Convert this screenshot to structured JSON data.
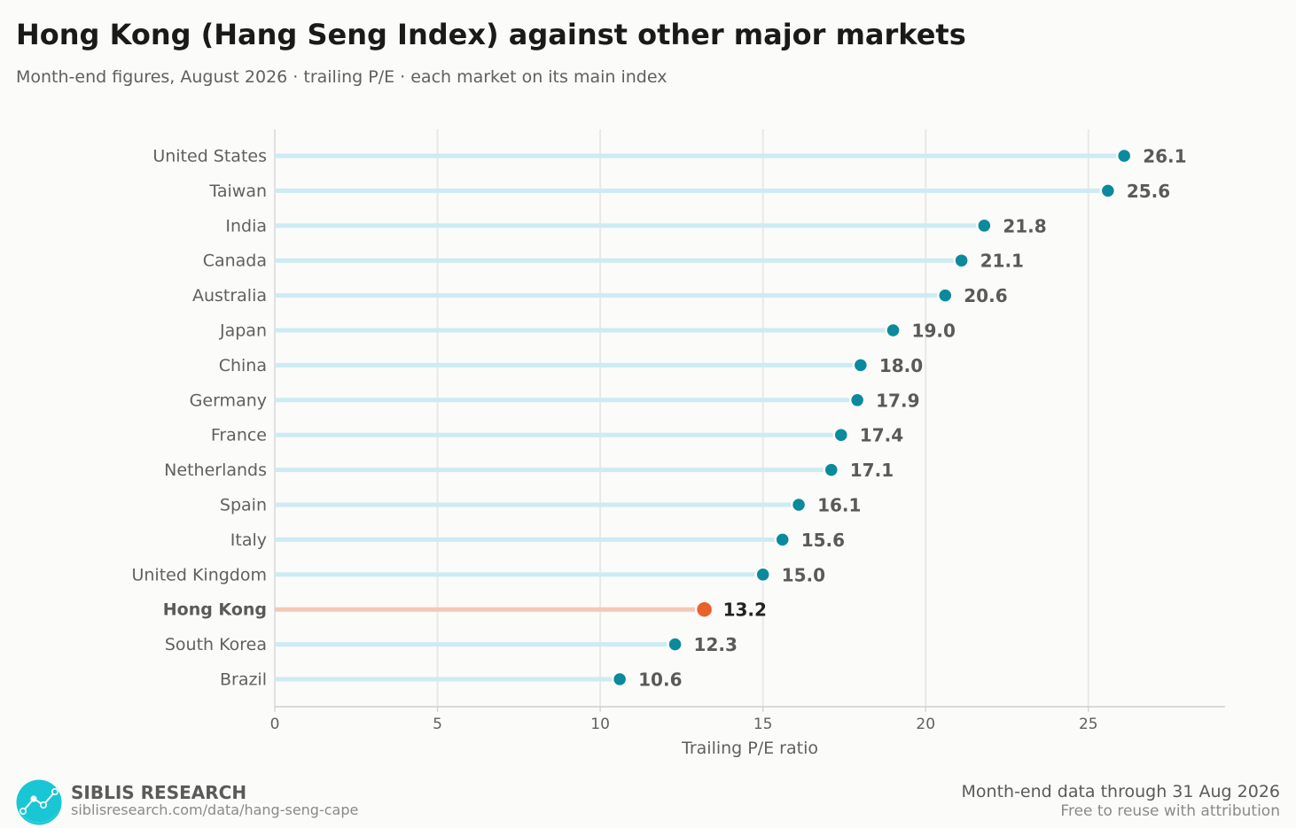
{
  "header": {
    "title": "Hong Kong (Hang Seng Index) against other major markets",
    "subtitle": "Month-end figures, August 2026 · trailing P/E · each market on its main index"
  },
  "chart_data": {
    "type": "lollipop",
    "orientation": "horizontal",
    "xlabel": "Trailing P/E ratio",
    "xlim": [
      0,
      29.2
    ],
    "xticks": [
      0,
      5,
      10,
      15,
      20,
      25
    ],
    "grid": "vertical",
    "highlight": "Hong Kong",
    "categories": [
      "United States",
      "Taiwan",
      "India",
      "Canada",
      "Australia",
      "Japan",
      "China",
      "Germany",
      "France",
      "Netherlands",
      "Spain",
      "Italy",
      "United Kingdom",
      "Hong Kong",
      "South Korea",
      "Brazil"
    ],
    "values": [
      26.1,
      25.6,
      21.8,
      21.1,
      20.6,
      19.0,
      18.0,
      17.9,
      17.4,
      17.1,
      16.1,
      15.6,
      15.0,
      13.2,
      12.3,
      10.6
    ],
    "value_labels": [
      "26.1",
      "25.6",
      "21.8",
      "21.1",
      "20.6",
      "19.0",
      "18.0",
      "17.9",
      "17.4",
      "17.1",
      "16.1",
      "15.6",
      "15.0",
      "13.2",
      "12.3",
      "10.6"
    ],
    "colors": {
      "stem": "#cdebf3",
      "dot": "#0a8a9c",
      "highlight_stem": "#f5c8b6",
      "highlight_dot": "#e8622e",
      "grid": "#e8e8e6",
      "axis": "#cfcfcf",
      "tick_text": "#606060",
      "value_text": "#5a5a5a",
      "highlight_text": "#222222"
    }
  },
  "footer": {
    "brand": "SIBLIS RESEARCH",
    "url": "siblisresearch.com/data/hang-seng-cape",
    "note_line1": "Month-end data through 31 Aug 2026",
    "note_line2": "Free to reuse with attribution",
    "logo_icon": "line-chart-logo-icon",
    "logo_color": "#19c6d4"
  }
}
